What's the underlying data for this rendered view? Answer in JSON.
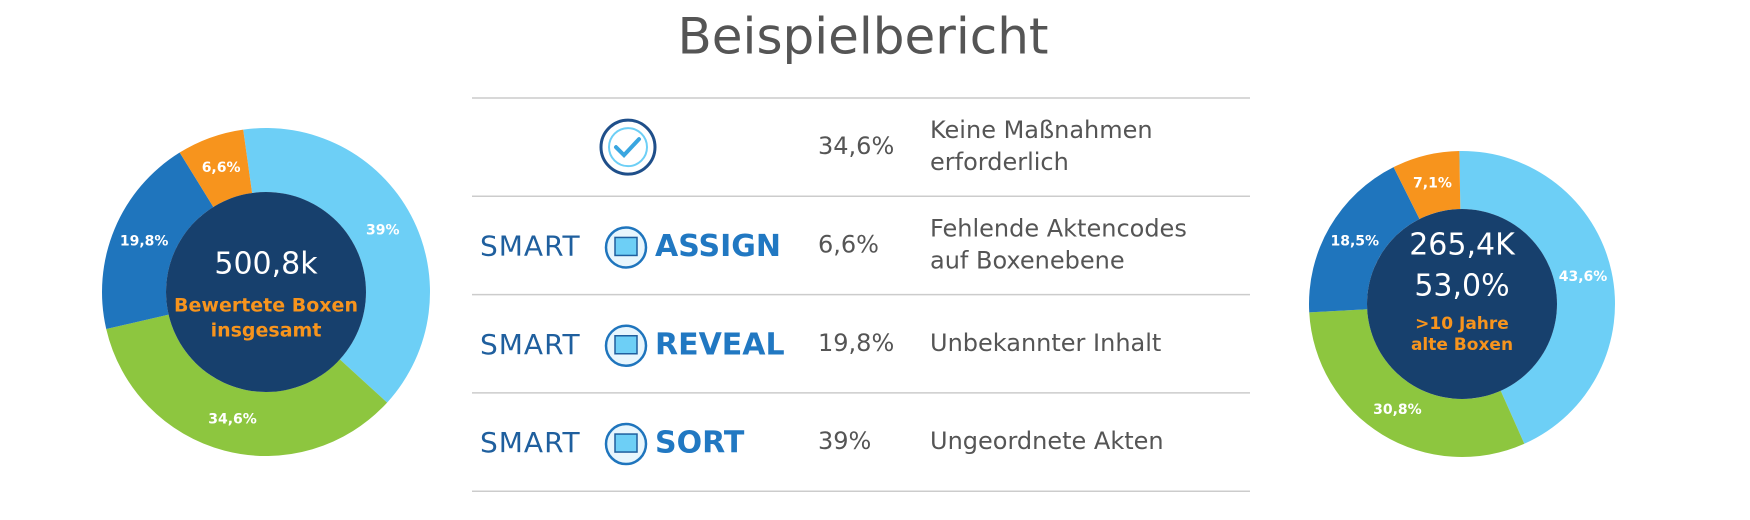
{
  "title": "Beispielbericht",
  "chart_data": [
    {
      "type": "donut",
      "center_value": "500,8k",
      "center_label": [
        "Bewertete Boxen",
        "insgesamt"
      ],
      "categories": [
        "Ungeordnete Akten",
        "Keine Maßnahmen erforderlich",
        "Unbekannter Inhalt",
        "Fehlende Aktencodes auf Boxenebene"
      ],
      "values": [
        39,
        34.6,
        19.8,
        6.6
      ],
      "value_labels": [
        "39%",
        "34,6%",
        "19,8%",
        "6,6%"
      ],
      "colors": [
        "#6dcff6",
        "#8dc63f",
        "#1f75bd",
        "#f7941d"
      ]
    },
    {
      "type": "donut",
      "center_value": [
        "265,4K",
        "53,0%"
      ],
      "center_label": [
        ">10 Jahre",
        "alte Boxen"
      ],
      "categories": [
        "Ungeordnete Akten",
        "Keine Maßnahmen erforderlich",
        "Unbekannter Inhalt",
        "Fehlende Aktencodes auf Boxenebene"
      ],
      "values": [
        43.6,
        30.8,
        18.5,
        7.1
      ],
      "value_labels": [
        "43,6%",
        "30,8%",
        "18,5%",
        "7,1%"
      ],
      "colors": [
        "#6dcff6",
        "#8dc63f",
        "#1f75bd",
        "#f7941d"
      ]
    }
  ],
  "table": {
    "rows": [
      {
        "logo": null,
        "percent": "34,6%",
        "description": [
          "Keine Maßnahmen",
          "erforderlich"
        ]
      },
      {
        "logo": {
          "prefix": "SMART",
          "name": "ASSIGN"
        },
        "percent": "6,6%",
        "description": [
          "Fehlende Aktencodes",
          "auf Boxenebene"
        ]
      },
      {
        "logo": {
          "prefix": "SMART",
          "name": "REVEAL"
        },
        "percent": "19,8%",
        "description": [
          "Unbekannter Inhalt"
        ]
      },
      {
        "logo": {
          "prefix": "SMART",
          "name": "SORT"
        },
        "percent": "39%",
        "description": [
          "Ungeordnete Akten"
        ]
      }
    ]
  }
}
